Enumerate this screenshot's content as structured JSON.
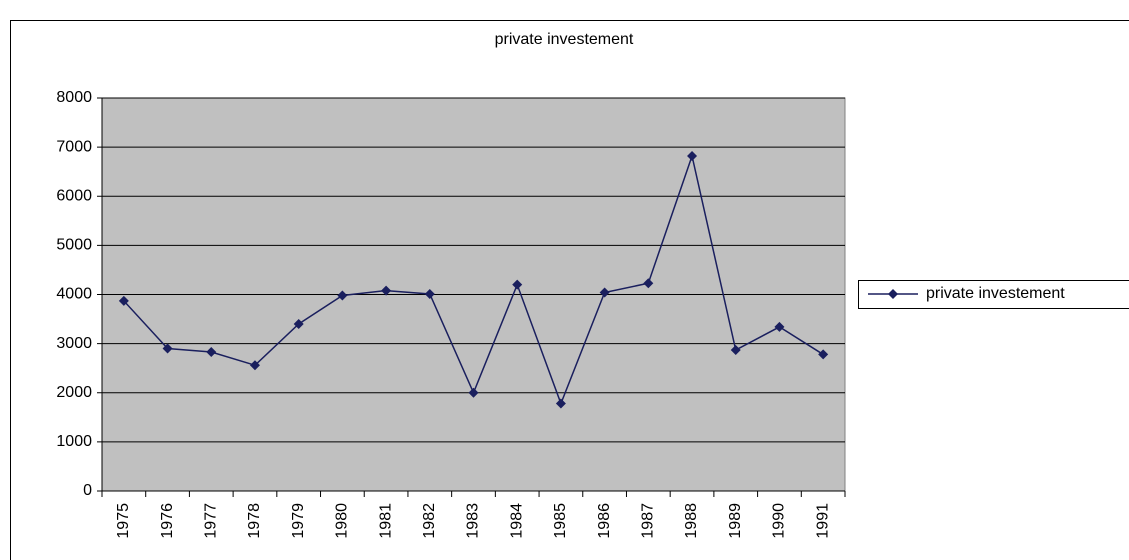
{
  "chart_data": {
    "type": "line",
    "title": "private investement",
    "categories": [
      "1975",
      "1976",
      "1977",
      "1978",
      "1979",
      "1980",
      "1981",
      "1982",
      "1983",
      "1984",
      "1985",
      "1986",
      "1987",
      "1988",
      "1989",
      "1990",
      "1991"
    ],
    "series": [
      {
        "name": "private investement",
        "color": "#1a1f5e",
        "values": [
          3870,
          2900,
          2830,
          2560,
          3400,
          3980,
          4080,
          4010,
          2000,
          4200,
          1780,
          4040,
          4230,
          6820,
          2870,
          3340,
          2780
        ]
      }
    ],
    "ylim": [
      0,
      8000
    ],
    "yticks": [
      0,
      1000,
      2000,
      3000,
      4000,
      5000,
      6000,
      7000,
      8000
    ],
    "grid": true,
    "legend": "right"
  }
}
